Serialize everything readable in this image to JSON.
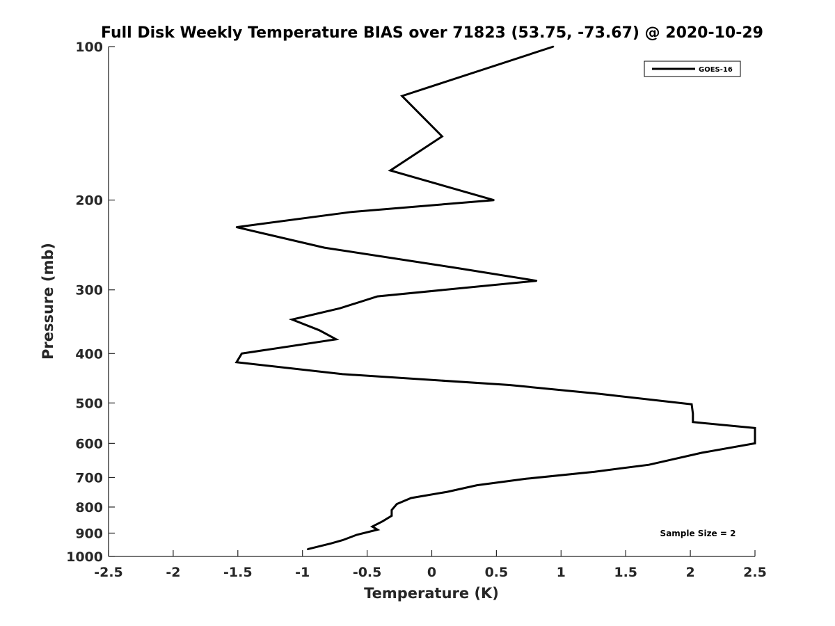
{
  "chart_data": {
    "type": "line",
    "title": "Full Disk Weekly Temperature BIAS over 71823 (53.75, -73.67) @ 2020-10-29",
    "xlabel": "Temperature (K)",
    "ylabel": "Pressure (mb)",
    "xlim": [
      -2.5,
      2.5
    ],
    "ylim": [
      100,
      1000
    ],
    "y_scale": "log",
    "y_reversed": true,
    "x_ticks": [
      -2.5,
      -2,
      -1.5,
      -1,
      -0.5,
      0,
      0.5,
      1,
      1.5,
      2,
      2.5
    ],
    "x_tick_labels": [
      "-2.5",
      "-2",
      "-1.5",
      "-1",
      "-0.5",
      "0",
      "0.5",
      "1",
      "1.5",
      "2",
      "2.5"
    ],
    "y_ticks": [
      100,
      200,
      300,
      400,
      500,
      600,
      700,
      800,
      900,
      1000
    ],
    "y_tick_labels": [
      "100",
      "200",
      "300",
      "400",
      "500",
      "600",
      "700",
      "800",
      "900",
      "1000"
    ],
    "grid": false,
    "legend_position": "top-right",
    "series": [
      {
        "name": "GOES-16",
        "color": "#000000",
        "points": [
          {
            "x": 0.94,
            "y": 100
          },
          {
            "x": -0.23,
            "y": 125
          },
          {
            "x": 0.08,
            "y": 150
          },
          {
            "x": -0.32,
            "y": 175
          },
          {
            "x": 0.48,
            "y": 200
          },
          {
            "x": -0.62,
            "y": 211
          },
          {
            "x": -1.51,
            "y": 226
          },
          {
            "x": -0.83,
            "y": 248
          },
          {
            "x": 0.2,
            "y": 272
          },
          {
            "x": 0.81,
            "y": 288
          },
          {
            "x": -0.42,
            "y": 309
          },
          {
            "x": -0.71,
            "y": 326
          },
          {
            "x": -1.08,
            "y": 343
          },
          {
            "x": -0.87,
            "y": 360
          },
          {
            "x": -0.74,
            "y": 375
          },
          {
            "x": -1.47,
            "y": 400
          },
          {
            "x": -1.51,
            "y": 416
          },
          {
            "x": -0.69,
            "y": 439
          },
          {
            "x": 0.6,
            "y": 461
          },
          {
            "x": 1.3,
            "y": 480
          },
          {
            "x": 2.01,
            "y": 503
          },
          {
            "x": 2.02,
            "y": 525
          },
          {
            "x": 2.02,
            "y": 545
          },
          {
            "x": 2.5,
            "y": 560
          },
          {
            "x": 2.5,
            "y": 600
          },
          {
            "x": 2.09,
            "y": 626
          },
          {
            "x": 1.68,
            "y": 661
          },
          {
            "x": 1.26,
            "y": 682
          },
          {
            "x": 0.73,
            "y": 704
          },
          {
            "x": 0.35,
            "y": 725
          },
          {
            "x": 0.12,
            "y": 747
          },
          {
            "x": -0.16,
            "y": 768
          },
          {
            "x": -0.27,
            "y": 789
          },
          {
            "x": -0.31,
            "y": 811
          },
          {
            "x": -0.31,
            "y": 832
          },
          {
            "x": -0.38,
            "y": 853
          },
          {
            "x": -0.46,
            "y": 874
          },
          {
            "x": -0.42,
            "y": 886
          },
          {
            "x": -0.58,
            "y": 907
          },
          {
            "x": -0.69,
            "y": 929
          },
          {
            "x": -0.78,
            "y": 943
          },
          {
            "x": -0.96,
            "y": 968
          }
        ]
      }
    ],
    "annotations": [
      "Sample Size = 2"
    ]
  }
}
